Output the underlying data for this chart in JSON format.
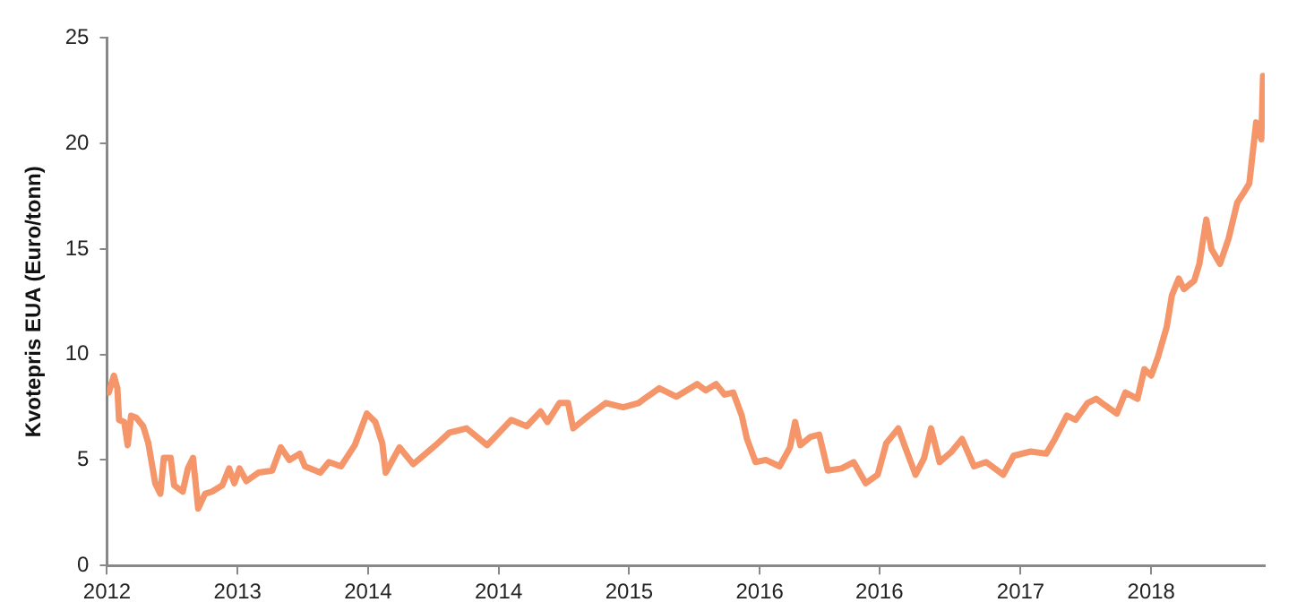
{
  "chart_data": {
    "type": "line",
    "ylabel": "Kvotepris EUA (Euro/tonn)",
    "x": [
      2012.01,
      2012.04,
      2012.06,
      2012.07,
      2012.1,
      2012.12,
      2012.14,
      2012.17,
      2012.21,
      2012.24,
      2012.28,
      2012.31,
      2012.33,
      2012.37,
      2012.39,
      2012.44,
      2012.47,
      2012.5,
      2012.53,
      2012.57,
      2012.61,
      2012.67,
      2012.71,
      2012.74,
      2012.77,
      2012.81,
      2012.88,
      2012.96,
      2013.01,
      2013.06,
      2013.12,
      2013.15,
      2013.24,
      2013.29,
      2013.36,
      2013.44,
      2013.51,
      2013.56,
      2013.6,
      2013.62,
      2013.7,
      2013.78,
      2013.91,
      2013.99,
      2014.09,
      2014.21,
      2014.35,
      2014.44,
      2014.52,
      2014.56,
      2014.63,
      2014.68,
      2014.71,
      2014.8,
      2014.9,
      2015.0,
      2015.09,
      2015.14,
      2015.21,
      2015.31,
      2015.43,
      2015.48,
      2015.54,
      2015.59,
      2015.64,
      2015.69,
      2015.72,
      2015.77,
      2015.83,
      2015.91,
      2015.97,
      2016.0,
      2016.03,
      2016.09,
      2016.14,
      2016.19,
      2016.27,
      2016.34,
      2016.41,
      2016.48,
      2016.53,
      2016.6,
      2016.64,
      2016.7,
      2016.75,
      2016.79,
      2016.84,
      2016.91,
      2016.97,
      2017.04,
      2017.11,
      2017.21,
      2017.27,
      2017.37,
      2017.46,
      2017.51,
      2017.58,
      2017.63,
      2017.7,
      2017.75,
      2017.8,
      2017.87,
      2017.92,
      2017.99,
      2018.03,
      2018.07,
      2018.11,
      2018.16,
      2018.19,
      2018.23,
      2018.26,
      2018.32,
      2018.35,
      2018.39,
      2018.42,
      2018.47,
      2018.52,
      2018.57,
      2018.61,
      2018.64,
      2018.68,
      2018.71,
      2018.72
    ],
    "series": [
      {
        "color": "#f4956a",
        "values": [
          8.2,
          9.0,
          8.4,
          6.9,
          6.8,
          5.7,
          7.1,
          7.0,
          6.6,
          5.8,
          3.9,
          3.4,
          5.1,
          5.1,
          3.8,
          3.5,
          4.6,
          5.1,
          2.7,
          3.4,
          3.5,
          3.8,
          4.6,
          3.9,
          4.6,
          4.0,
          4.4,
          4.5,
          5.6,
          5.0,
          5.3,
          4.7,
          4.4,
          4.9,
          4.7,
          5.7,
          7.2,
          6.8,
          5.8,
          4.4,
          5.6,
          4.8,
          5.7,
          6.3,
          6.5,
          5.7,
          6.9,
          6.6,
          7.3,
          6.8,
          7.7,
          7.7,
          6.5,
          7.1,
          7.7,
          7.5,
          7.7,
          8.0,
          8.4,
          8.0,
          8.6,
          8.3,
          8.6,
          8.1,
          8.2,
          7.1,
          6.0,
          4.9,
          5.0,
          4.7,
          5.6,
          6.8,
          5.7,
          6.1,
          6.2,
          4.5,
          4.6,
          4.9,
          3.9,
          4.3,
          5.8,
          6.5,
          5.6,
          4.3,
          5.1,
          6.5,
          4.9,
          5.4,
          6.0,
          4.7,
          4.9,
          4.3,
          5.2,
          5.4,
          5.3,
          6.0,
          7.1,
          6.9,
          7.7,
          7.9,
          7.6,
          7.2,
          8.2,
          7.9,
          9.3,
          9.0,
          9.9,
          11.3,
          12.8,
          13.6,
          13.1,
          13.5,
          14.3,
          16.4,
          15.0,
          14.3,
          15.5,
          17.2,
          17.7,
          18.1,
          21.0,
          20.2,
          23.2
        ]
      }
    ],
    "xlim": [
      2012,
      2018.73
    ],
    "xticks": [
      {
        "value": 2012,
        "label": "2012"
      },
      {
        "value": 2012.759,
        "label": "2013"
      },
      {
        "value": 2013.517,
        "label": "2014"
      },
      {
        "value": 2014.276,
        "label": "2014"
      },
      {
        "value": 2015.035,
        "label": "2015"
      },
      {
        "value": 2015.794,
        "label": "2016"
      },
      {
        "value": 2016.49,
        "label": "2016"
      },
      {
        "value": 2017.311,
        "label": "2017"
      },
      {
        "value": 2018.07,
        "label": "2018"
      }
    ],
    "ylim": [
      0,
      25
    ],
    "yticks": [
      0,
      5,
      10,
      15,
      20,
      25
    ],
    "grid": false,
    "legend": false,
    "marker": "none",
    "line_style": "solid"
  }
}
